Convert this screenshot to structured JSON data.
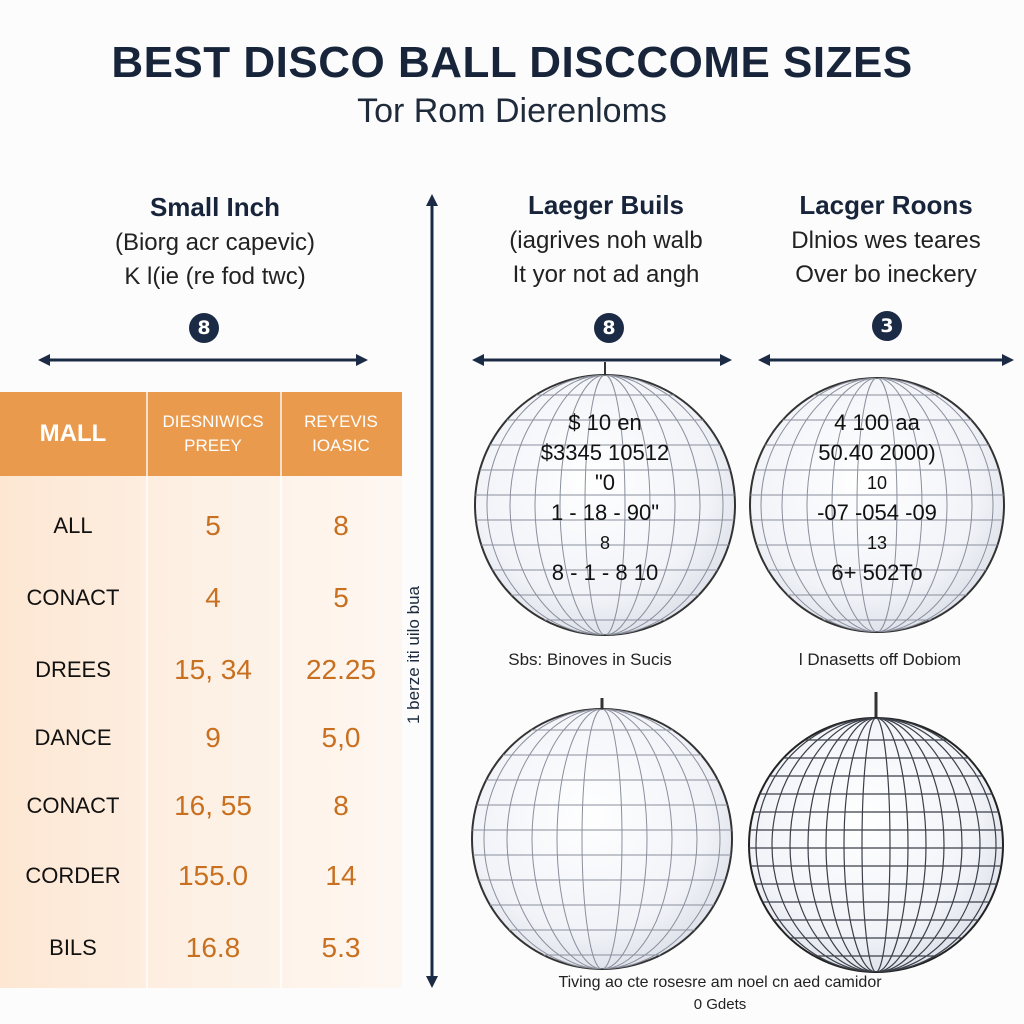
{
  "header": {
    "title": "BEST DISCO BALL DISCCOME SIZES",
    "subtitle": "Tor Rom Dierenloms"
  },
  "columns": [
    {
      "heading": "Small Inch",
      "lines": [
        "(Biorg acr capevic)",
        "K l(ie (re fod twc)"
      ],
      "badge": "8"
    },
    {
      "heading": "Laeger Buils",
      "lines": [
        "(iagrives noh walb",
        "It yor not ad angh"
      ],
      "badge": "8"
    },
    {
      "heading": "Lacger Roons",
      "lines": [
        "Dlnios wes teares",
        "Over bo ineckery"
      ],
      "badge": "3"
    }
  ],
  "table": {
    "headers": [
      "MALL",
      "DIESNIWICS\nPREEY",
      "REYEVIS\nIOASIC"
    ],
    "rows": [
      [
        "ALL",
        "5",
        "8"
      ],
      [
        "CONACT",
        "4",
        "5"
      ],
      [
        "DREES",
        "15, 34",
        "22.25"
      ],
      [
        "DANCE",
        "9",
        "5,0"
      ],
      [
        "CONACT",
        "16, 55",
        "8"
      ],
      [
        "CORDER",
        "155.0",
        "14"
      ],
      [
        "BILS",
        "16.8",
        "5.3"
      ]
    ]
  },
  "axis_label": "1 berze iti uilo bua",
  "balls": {
    "ball1_lines": [
      "$ 10 en",
      "$3345 10512",
      "\"0",
      "1 - 18 - 90\"",
      "8",
      "8 - 1 - 8 10"
    ],
    "ball2_lines": [
      "4 100 aa",
      "50.40 2000)",
      "10",
      "-07 -054 -09",
      "13",
      "6+ 502To"
    ],
    "caption1": "Sbs: Binoves in Sucis",
    "caption2": "l Dnasetts off Dobiom"
  },
  "footer": {
    "line1": "Tiving ao cte rosesre am noel cn aed camidor",
    "line2": "0 Gdets"
  },
  "colors": {
    "navy": "#1b2a45",
    "orange_header": "#e99a4c",
    "orange_values": "#c8701f"
  }
}
